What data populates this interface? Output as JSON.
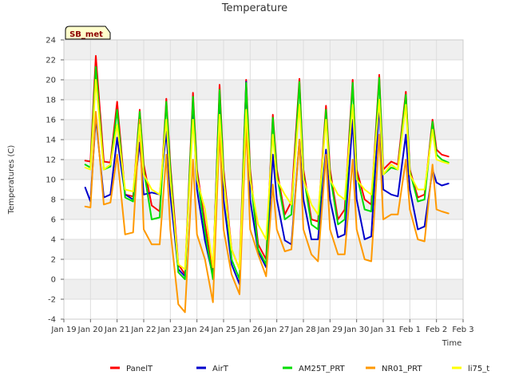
{
  "chart_data": {
    "type": "line",
    "title": "Temperature",
    "xlabel": "Time",
    "ylabel": "Temperatures (C)",
    "site_badge": "SB_met",
    "xlim": [
      0,
      15
    ],
    "ylim": [
      -4,
      24
    ],
    "yticks": [
      -4,
      -2,
      0,
      2,
      4,
      6,
      8,
      10,
      12,
      14,
      16,
      18,
      20,
      22,
      24
    ],
    "xtick_labels": [
      "Jan 19",
      "Jan 20",
      "Jan 21",
      "Jan 22",
      "Jan 23",
      "Jan 24",
      "Jan 25",
      "Jan 26",
      "Jan 27",
      "Jan 28",
      "Jan 29",
      "Jan 30",
      "Jan 31",
      "Feb 1",
      "Feb 2",
      "Feb 3"
    ],
    "x": [
      0.8,
      1.0,
      1.2,
      1.5,
      1.75,
      2.0,
      2.3,
      2.6,
      2.85,
      3.0,
      3.3,
      3.6,
      3.85,
      4.0,
      4.3,
      4.55,
      4.85,
      5.0,
      5.3,
      5.6,
      5.85,
      6.0,
      6.3,
      6.6,
      6.85,
      7.0,
      7.3,
      7.6,
      7.85,
      8.0,
      8.3,
      8.55,
      8.85,
      9.0,
      9.3,
      9.55,
      9.85,
      10.0,
      10.3,
      10.55,
      10.85,
      11.0,
      11.3,
      11.55,
      11.85,
      12.0,
      12.3,
      12.55,
      12.85,
      13.0,
      13.3,
      13.55,
      13.85,
      14.0,
      14.2,
      14.45
    ],
    "grid": true,
    "legend_position": "bottom",
    "series": [
      {
        "name": "PanelT",
        "color": "#ff0000",
        "values": [
          11.9,
          11.8,
          22.4,
          11.8,
          11.7,
          17.8,
          8.5,
          8.3,
          17.0,
          11.5,
          7.4,
          6.8,
          18.1,
          11.5,
          1.5,
          0.5,
          18.7,
          11.0,
          5.6,
          0.5,
          19.5,
          11.0,
          3.0,
          1.0,
          20.0,
          11.0,
          3.5,
          2.0,
          16.5,
          11.0,
          6.5,
          7.8,
          20.1,
          11.0,
          6.0,
          5.8,
          17.4,
          11.0,
          6.0,
          7.0,
          20.0,
          11.0,
          8.0,
          7.5,
          20.5,
          11.0,
          11.8,
          11.5,
          18.8,
          11.0,
          8.2,
          8.5,
          16.0,
          13.0,
          12.5,
          12.3
        ]
      },
      {
        "name": "AirT",
        "color": "#0000cc",
        "values": [
          9.2,
          7.8,
          16.2,
          8.2,
          8.5,
          14.2,
          8.5,
          8.0,
          13.7,
          8.5,
          8.7,
          8.5,
          14.8,
          8.5,
          1.0,
          0.3,
          17.5,
          9.0,
          3.9,
          0.3,
          18.8,
          8.0,
          1.5,
          -0.5,
          19.8,
          8.0,
          2.8,
          1.2,
          12.5,
          8.0,
          3.9,
          3.5,
          14.0,
          8.0,
          4.0,
          4.0,
          13.0,
          8.0,
          4.2,
          4.5,
          16.0,
          8.0,
          4.0,
          4.3,
          17.5,
          9.0,
          8.5,
          8.3,
          14.5,
          9.0,
          5.0,
          5.3,
          11.0,
          9.7,
          9.4,
          9.6
        ]
      },
      {
        "name": "AM25T_PRT",
        "color": "#00dd00",
        "values": [
          11.5,
          11.2,
          21.3,
          11.0,
          11.3,
          17.0,
          8.2,
          7.8,
          16.8,
          11.0,
          6.0,
          6.2,
          17.8,
          11.0,
          0.7,
          0.0,
          18.3,
          10.5,
          4.8,
          0.0,
          19.0,
          10.5,
          2.0,
          0.0,
          19.7,
          10.5,
          3.0,
          1.5,
          16.2,
          10.5,
          6.0,
          6.5,
          19.8,
          10.5,
          5.5,
          5.0,
          17.0,
          10.5,
          5.5,
          6.0,
          19.7,
          10.5,
          7.0,
          6.8,
          20.2,
          10.5,
          11.2,
          11.0,
          18.5,
          10.8,
          7.8,
          8.0,
          15.8,
          12.5,
          12.0,
          11.7
        ]
      },
      {
        "name": "NR01_PRT",
        "color": "#ff9900",
        "values": [
          7.3,
          7.2,
          16.8,
          7.5,
          7.7,
          12.5,
          4.5,
          4.7,
          16.0,
          5.0,
          3.5,
          3.5,
          12.5,
          5.0,
          -2.5,
          -3.3,
          12.0,
          4.5,
          2.0,
          -2.3,
          15.0,
          5.0,
          0.5,
          -1.5,
          15.5,
          5.0,
          2.5,
          0.3,
          9.5,
          5.0,
          2.8,
          3.0,
          14.0,
          5.0,
          2.5,
          1.8,
          12.5,
          5.0,
          2.5,
          2.5,
          12.0,
          5.0,
          2.0,
          1.8,
          14.5,
          6.0,
          6.5,
          6.5,
          12.0,
          7.0,
          4.0,
          3.8,
          11.5,
          7.0,
          6.8,
          6.6
        ]
      },
      {
        "name": "li75_t",
        "color": "#ffff00",
        "values": [
          11.2,
          11.0,
          20.0,
          11.0,
          11.5,
          15.5,
          9.0,
          8.8,
          15.5,
          10.5,
          9.0,
          8.5,
          16.0,
          10.0,
          1.5,
          1.0,
          16.0,
          10.0,
          7.0,
          1.2,
          16.5,
          10.0,
          3.0,
          1.0,
          17.0,
          10.0,
          5.5,
          4.0,
          14.5,
          10.0,
          8.5,
          7.5,
          17.5,
          10.0,
          7.5,
          6.5,
          16.0,
          10.0,
          8.5,
          8.0,
          17.5,
          10.0,
          9.0,
          8.5,
          18.0,
          10.5,
          11.5,
          11.0,
          17.5,
          10.5,
          9.0,
          9.0,
          15.0,
          12.0,
          11.8,
          11.6
        ]
      }
    ]
  }
}
